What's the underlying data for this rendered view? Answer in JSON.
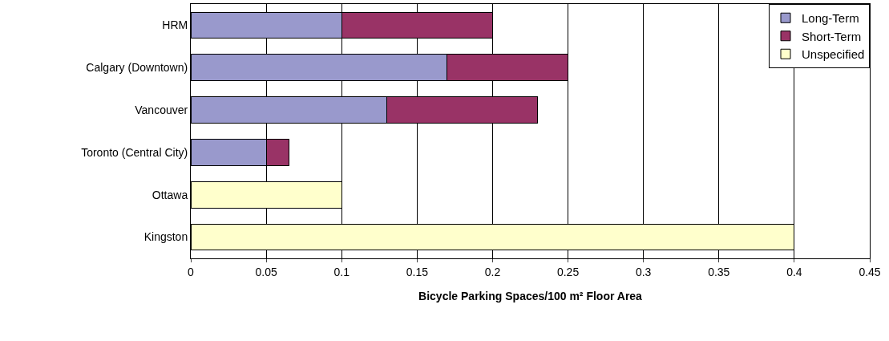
{
  "chart_data": {
    "type": "bar",
    "orientation": "horizontal",
    "stacked": true,
    "categories": [
      "HRM",
      "Calgary (Downtown)",
      "Vancouver",
      "Toronto (Central City)",
      "Ottawa",
      "Kingston"
    ],
    "series": [
      {
        "name": "Long-Term",
        "color": "#9999cc",
        "values": [
          0.1,
          0.17,
          0.13,
          0.05,
          null,
          null
        ]
      },
      {
        "name": "Short-Term",
        "color": "#993366",
        "values": [
          0.1,
          0.08,
          0.1,
          0.015,
          null,
          null
        ]
      },
      {
        "name": "Unspecified",
        "color": "#ffffcc",
        "values": [
          null,
          null,
          null,
          null,
          0.1,
          0.4
        ]
      }
    ],
    "xlabel": "Bicycle Parking Spaces/100 m² Floor Area",
    "xlim": [
      0,
      0.45
    ],
    "xticks": [
      0,
      0.05,
      0.1,
      0.15,
      0.2,
      0.25,
      0.3,
      0.35,
      0.4,
      0.45
    ],
    "grid": "x",
    "legend": "top right"
  }
}
